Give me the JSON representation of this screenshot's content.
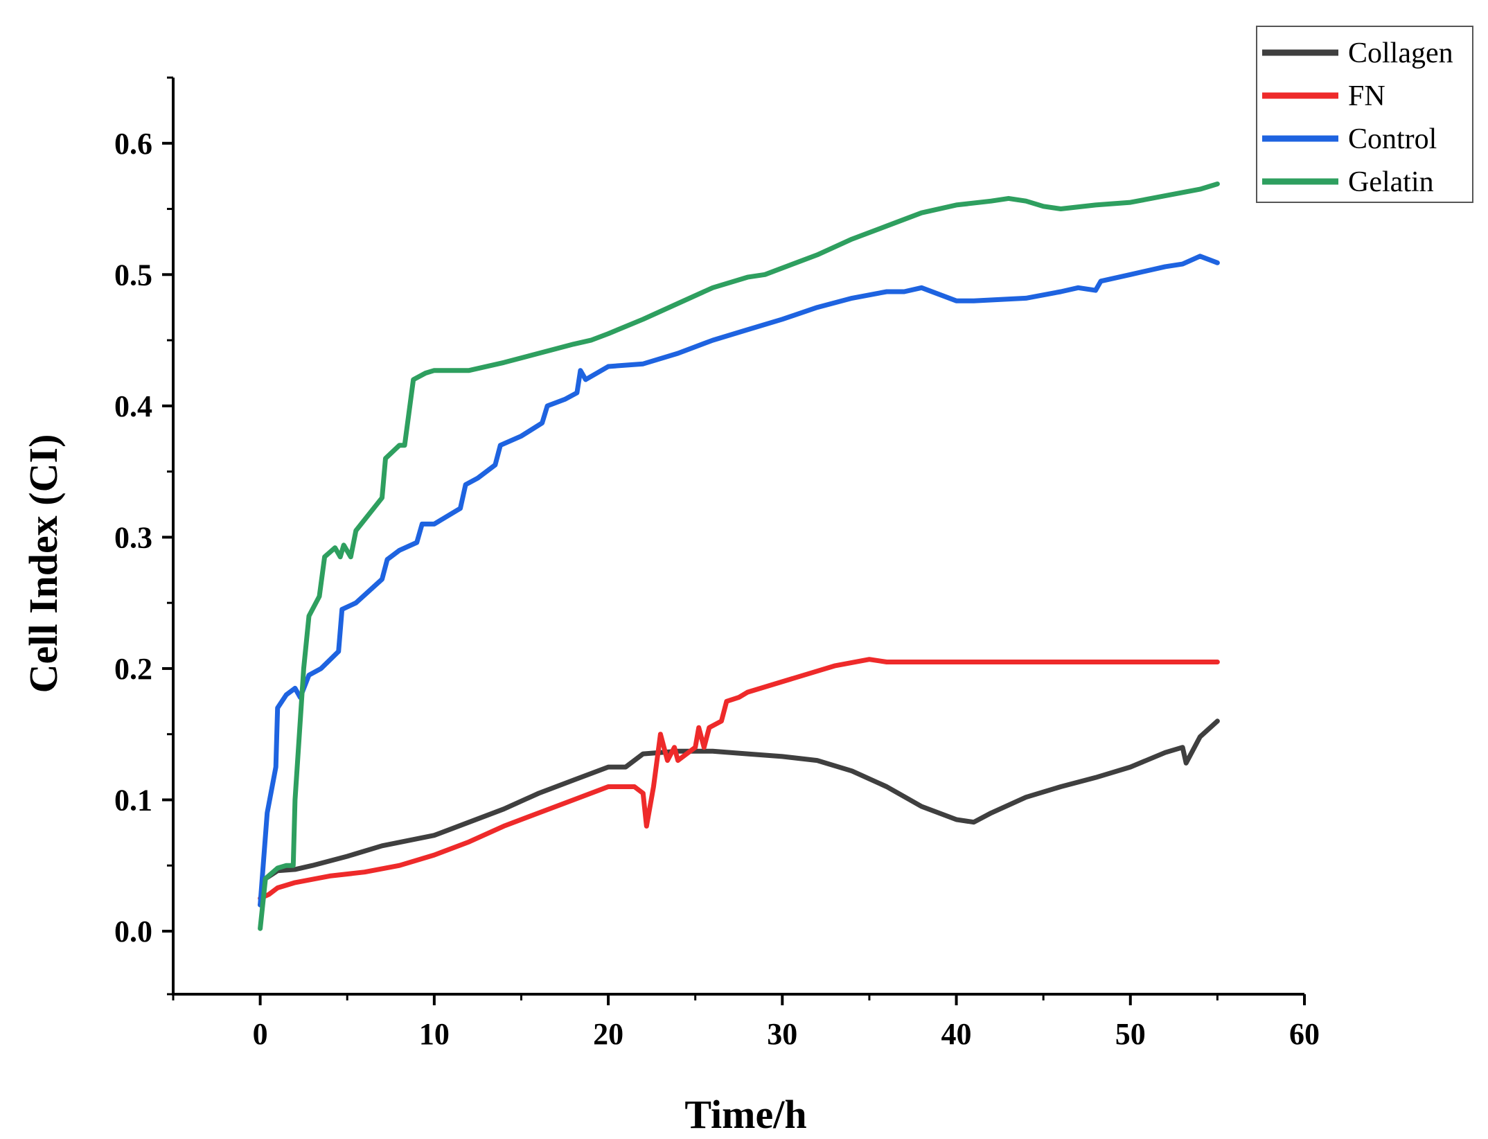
{
  "chart_data": {
    "type": "line",
    "title": "",
    "xlabel": "Time/h",
    "ylabel": "Cell Index (CI)",
    "xlim": [
      -5,
      60
    ],
    "ylim": [
      -0.048,
      0.65
    ],
    "xticks": [
      0,
      10,
      20,
      30,
      40,
      50,
      60
    ],
    "xtick_labels": [
      "0",
      "10",
      "20",
      "30",
      "40",
      "50",
      "60"
    ],
    "yticks": [
      0.0,
      0.1,
      0.2,
      0.3,
      0.4,
      0.5,
      0.6
    ],
    "ytick_labels": [
      "0.0",
      "0.1",
      "0.2",
      "0.3",
      "0.4",
      "0.5",
      "0.6"
    ],
    "grid": false,
    "legend_position": "top-right",
    "series": [
      {
        "name": "Collagen",
        "color": "#3f3f3f",
        "x": [
          0,
          0.3,
          1,
          2,
          3,
          5,
          7,
          10,
          12,
          14,
          16,
          18,
          20,
          21,
          22,
          24,
          26,
          28,
          30,
          32,
          34,
          36,
          38,
          40,
          41,
          42,
          44,
          46,
          48,
          50,
          52,
          53,
          53.2,
          54,
          55
        ],
        "y": [
          0.02,
          0.04,
          0.046,
          0.047,
          0.05,
          0.057,
          0.065,
          0.073,
          0.083,
          0.093,
          0.105,
          0.115,
          0.125,
          0.125,
          0.135,
          0.137,
          0.137,
          0.135,
          0.133,
          0.13,
          0.122,
          0.11,
          0.095,
          0.085,
          0.083,
          0.09,
          0.102,
          0.11,
          0.117,
          0.125,
          0.136,
          0.14,
          0.128,
          0.148,
          0.16
        ]
      },
      {
        "name": "FN",
        "color": "#ee2a2a",
        "x": [
          0,
          0.5,
          1,
          2,
          4,
          6,
          8,
          10,
          12,
          14,
          16,
          18,
          20,
          21.5,
          22,
          22.2,
          22.6,
          23,
          23.4,
          23.8,
          24,
          25,
          25.2,
          25.5,
          25.8,
          26.5,
          26.8,
          27.5,
          28,
          30,
          32,
          33,
          35,
          36,
          38,
          40,
          45,
          50,
          55
        ],
        "y": [
          0.025,
          0.028,
          0.033,
          0.037,
          0.042,
          0.045,
          0.05,
          0.058,
          0.068,
          0.08,
          0.09,
          0.1,
          0.11,
          0.11,
          0.105,
          0.08,
          0.11,
          0.15,
          0.13,
          0.14,
          0.13,
          0.14,
          0.155,
          0.14,
          0.155,
          0.16,
          0.175,
          0.178,
          0.182,
          0.19,
          0.198,
          0.202,
          0.207,
          0.205,
          0.205,
          0.205,
          0.205,
          0.205,
          0.205
        ]
      },
      {
        "name": "Control",
        "color": "#1e63e0",
        "x": [
          0,
          0.4,
          0.9,
          1,
          1.5,
          2,
          2.3,
          2.8,
          3.5,
          4.5,
          4.7,
          5.5,
          7,
          7.3,
          8,
          9,
          9.3,
          10,
          11.5,
          11.8,
          12.5,
          13.5,
          13.8,
          15,
          16.2,
          16.5,
          17.5,
          18.2,
          18.4,
          18.7,
          20,
          22,
          24,
          26,
          28,
          30,
          32,
          34,
          36,
          37,
          38,
          40,
          41,
          44,
          46,
          47,
          48,
          48.3,
          50,
          52,
          53,
          54,
          55
        ],
        "y": [
          0.02,
          0.09,
          0.125,
          0.17,
          0.18,
          0.185,
          0.178,
          0.195,
          0.2,
          0.213,
          0.245,
          0.25,
          0.268,
          0.283,
          0.29,
          0.296,
          0.31,
          0.31,
          0.322,
          0.34,
          0.345,
          0.355,
          0.37,
          0.377,
          0.387,
          0.4,
          0.405,
          0.41,
          0.427,
          0.42,
          0.43,
          0.432,
          0.44,
          0.45,
          0.458,
          0.466,
          0.475,
          0.482,
          0.487,
          0.487,
          0.49,
          0.48,
          0.48,
          0.482,
          0.487,
          0.49,
          0.488,
          0.495,
          0.5,
          0.506,
          0.508,
          0.514,
          0.509
        ]
      },
      {
        "name": "Gelatin",
        "color": "#2e9f5f",
        "x": [
          0,
          0.3,
          1,
          1.5,
          1.9,
          2,
          2.5,
          2.8,
          3.4,
          3.7,
          4.3,
          4.6,
          4.8,
          5.2,
          5.5,
          7,
          7.2,
          8,
          8.3,
          8.8,
          9.5,
          10,
          12,
          14,
          16,
          18,
          19,
          20,
          22,
          24,
          26,
          28,
          29,
          30,
          32,
          34,
          36,
          38,
          40,
          42,
          43,
          44,
          45,
          46,
          48,
          50,
          52,
          54,
          55
        ],
        "y": [
          0.002,
          0.04,
          0.048,
          0.05,
          0.05,
          0.1,
          0.2,
          0.24,
          0.255,
          0.285,
          0.292,
          0.285,
          0.294,
          0.285,
          0.305,
          0.33,
          0.36,
          0.37,
          0.37,
          0.42,
          0.425,
          0.427,
          0.427,
          0.433,
          0.44,
          0.447,
          0.45,
          0.455,
          0.466,
          0.478,
          0.49,
          0.498,
          0.5,
          0.505,
          0.515,
          0.527,
          0.537,
          0.547,
          0.553,
          0.556,
          0.558,
          0.556,
          0.552,
          0.55,
          0.553,
          0.555,
          0.56,
          0.565,
          0.569
        ]
      }
    ]
  }
}
